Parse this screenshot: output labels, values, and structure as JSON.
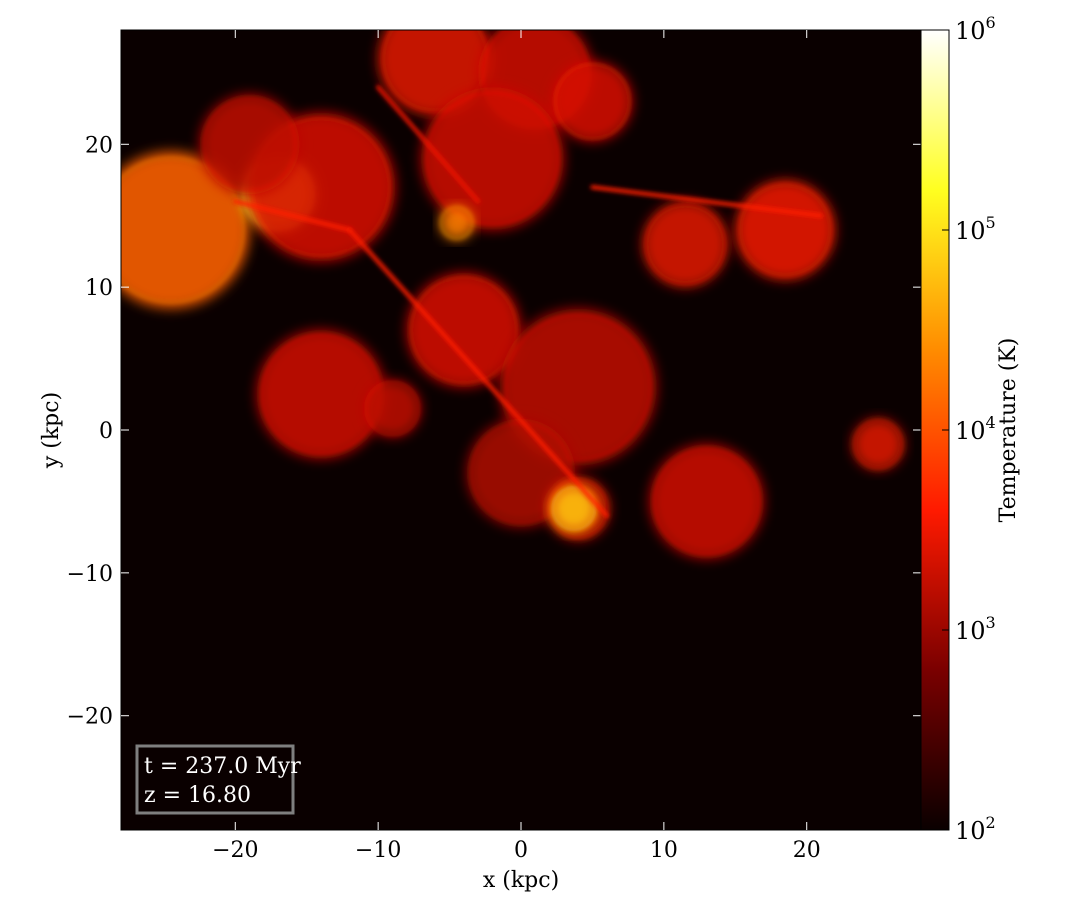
{
  "chart_data": {
    "type": "heatmap",
    "title": "",
    "xlabel": "x  (kpc)",
    "ylabel": "y  (kpc)",
    "xlim": [
      -28,
      28
    ],
    "ylim": [
      -28,
      28
    ],
    "xticks": [
      -20,
      -10,
      0,
      10,
      20
    ],
    "yticks": [
      -20,
      -10,
      0,
      10,
      20
    ],
    "grid": false,
    "colorbar": {
      "label": "Temperature  (K)",
      "scale": "log",
      "range": [
        100,
        1000000
      ],
      "ticks": [
        {
          "value": 100,
          "label": "10",
          "exp": "2"
        },
        {
          "value": 1000,
          "label": "10",
          "exp": "3"
        },
        {
          "value": 10000,
          "label": "10",
          "exp": "4"
        },
        {
          "value": 100000,
          "label": "10",
          "exp": "5"
        },
        {
          "value": 1000000,
          "label": "10",
          "exp": "6"
        }
      ],
      "colormap": "hot",
      "colors": [
        "#0a0000",
        "#7a0000",
        "#ff1a00",
        "#ff8c00",
        "#ffff20",
        "#ffffff"
      ]
    },
    "background_value": 100,
    "annotation": {
      "lines": [
        "t = 237.0 Myr",
        "z = 16.80"
      ],
      "position": "bottom-left",
      "border_color": "#7f7f7f",
      "text_color": "#ffffff"
    },
    "regions": [
      {
        "kind": "blob",
        "x": -24.5,
        "y": 14,
        "r": 5.5,
        "logT": 4.1
      },
      {
        "kind": "blob",
        "x": -17,
        "y": 16.5,
        "r": 2.6,
        "logT": 5.0
      },
      {
        "kind": "blob",
        "x": -14,
        "y": 17,
        "r": 5.2,
        "logT": 3.35
      },
      {
        "kind": "blob",
        "x": -19,
        "y": 20,
        "r": 3.5,
        "logT": 3.2
      },
      {
        "kind": "blob",
        "x": -6,
        "y": 26,
        "r": 4.0,
        "logT": 3.4
      },
      {
        "kind": "blob",
        "x": 1,
        "y": 25,
        "r": 4.0,
        "logT": 3.3
      },
      {
        "kind": "blob",
        "x": 5,
        "y": 23,
        "r": 2.8,
        "logT": 3.35
      },
      {
        "kind": "blob",
        "x": -2,
        "y": 19,
        "r": 5.0,
        "logT": 3.3
      },
      {
        "kind": "blob",
        "x": -4.5,
        "y": 14.5,
        "r": 1.2,
        "logT": 4.3
      },
      {
        "kind": "blob",
        "x": 11.5,
        "y": 13,
        "r": 3.0,
        "logT": 3.4
      },
      {
        "kind": "blob",
        "x": 18.5,
        "y": 14,
        "r": 3.5,
        "logT": 3.5
      },
      {
        "kind": "blob",
        "x": -4,
        "y": 7,
        "r": 4.0,
        "logT": 3.35
      },
      {
        "kind": "blob",
        "x": 4,
        "y": 3,
        "r": 5.5,
        "logT": 3.2
      },
      {
        "kind": "blob",
        "x": -14,
        "y": 2.5,
        "r": 4.5,
        "logT": 3.3
      },
      {
        "kind": "blob",
        "x": -9,
        "y": 1.5,
        "r": 2.0,
        "logT": 3.2
      },
      {
        "kind": "blob",
        "x": 0,
        "y": -3,
        "r": 3.8,
        "logT": 3.1
      },
      {
        "kind": "blob",
        "x": 4,
        "y": -5.5,
        "r": 2.2,
        "logT": 3.4
      },
      {
        "kind": "blob",
        "x": 3.7,
        "y": -5.5,
        "r": 1.6,
        "logT": 4.8
      },
      {
        "kind": "blob",
        "x": 13,
        "y": -5,
        "r": 4.0,
        "logT": 3.3
      },
      {
        "kind": "blob",
        "x": 25,
        "y": -1,
        "r": 1.8,
        "logT": 3.4
      },
      {
        "kind": "filament",
        "x1": -20,
        "y1": 16,
        "x2": -12,
        "y2": 14,
        "logT": 3.6
      },
      {
        "kind": "filament",
        "x1": -12,
        "y1": 14,
        "x2": 6,
        "y2": -6,
        "logT": 3.6
      },
      {
        "kind": "filament",
        "x1": 5,
        "y1": 17,
        "x2": 21,
        "y2": 15,
        "logT": 3.6
      },
      {
        "kind": "filament",
        "x1": -10,
        "y1": 24,
        "x2": -3,
        "y2": 16,
        "logT": 3.5
      }
    ]
  }
}
